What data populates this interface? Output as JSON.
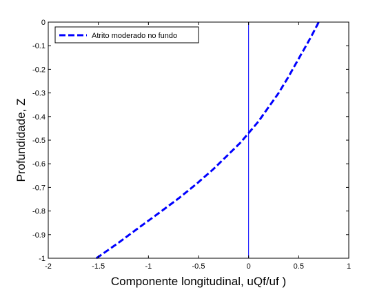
{
  "chart_data": {
    "type": "line",
    "title": "",
    "xlabel": "Componente longitudinal, uQf/uf )",
    "ylabel": "Profundidade, Z",
    "xlim": [
      -2,
      1
    ],
    "ylim": [
      -1,
      0
    ],
    "xticks": [
      -2,
      -1.5,
      -1,
      -0.5,
      0,
      0.5,
      1
    ],
    "xtick_labels": [
      "-2",
      "-1.5",
      "-1",
      "-0.5",
      "0",
      "0.5",
      "1"
    ],
    "yticks": [
      0,
      -0.1,
      -0.2,
      -0.3,
      -0.4,
      -0.5,
      -0.6,
      -0.7,
      -0.8,
      -0.9,
      -1
    ],
    "ytick_labels": [
      "0",
      "-0.1",
      "-0.2",
      "-0.3",
      "-0.4",
      "-0.5",
      "-0.6",
      "-0.7",
      "-0.8",
      "-0.9",
      "-1"
    ],
    "grid": false,
    "legend_position": "top-left",
    "series": [
      {
        "name": "Atrito moderado no fundo",
        "color": "#0000ff",
        "style": "dashed",
        "x": [
          -1.52,
          -1.3,
          -1.1,
          -0.9,
          -0.7,
          -0.52,
          -0.35,
          -0.2,
          -0.08,
          0.0,
          0.1,
          0.2,
          0.3,
          0.4,
          0.48,
          0.56,
          0.62,
          0.67,
          0.7
        ],
        "y": [
          -1.0,
          -0.935,
          -0.872,
          -0.81,
          -0.747,
          -0.685,
          -0.622,
          -0.56,
          -0.51,
          -0.47,
          -0.42,
          -0.36,
          -0.3,
          -0.23,
          -0.17,
          -0.11,
          -0.065,
          -0.025,
          0.0
        ]
      }
    ],
    "reference_lines": [
      {
        "orientation": "vertical",
        "x": 0,
        "color": "#0000ff"
      }
    ]
  }
}
